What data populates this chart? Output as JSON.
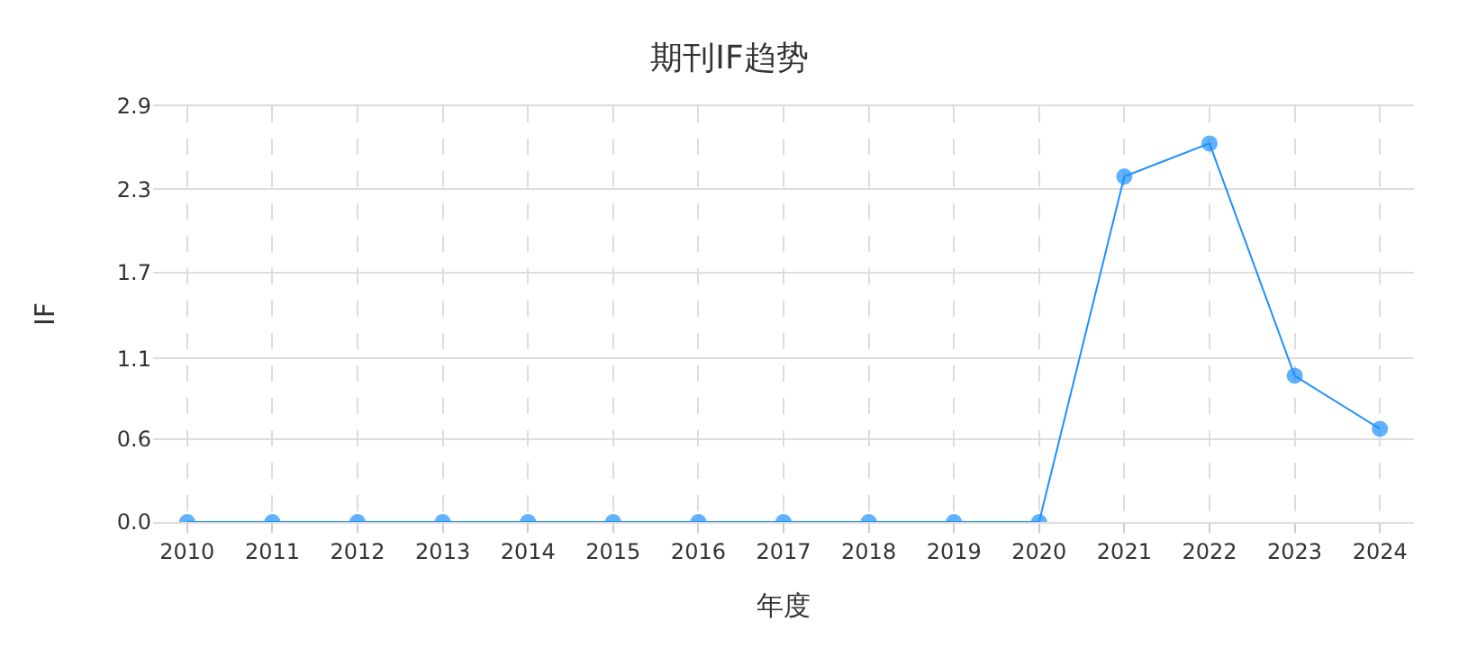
{
  "chart_data": {
    "type": "line",
    "title": "期刊IF趋势",
    "xlabel": "年度",
    "ylabel": "IF",
    "categories": [
      "2010",
      "2011",
      "2012",
      "2013",
      "2014",
      "2015",
      "2016",
      "2017",
      "2018",
      "2019",
      "2020",
      "2021",
      "2022",
      "2023",
      "2024"
    ],
    "series": [
      {
        "color": "#1e90ff",
        "values": [
          0,
          0,
          0,
          0,
          0,
          0,
          0,
          0,
          0,
          0,
          0,
          2.41,
          2.64,
          1.02,
          0.65
        ]
      }
    ],
    "ylim": [
      0,
      2.9
    ],
    "yticks": [
      {
        "value": 0,
        "label": "0.0"
      },
      {
        "value": 0.58,
        "label": "0.6"
      },
      {
        "value": 1.14,
        "label": "1.1"
      },
      {
        "value": 1.74,
        "label": "1.7"
      },
      {
        "value": 2.32,
        "label": "2.3"
      },
      {
        "value": 2.9,
        "label": "2.9"
      }
    ],
    "grid": true,
    "marker": "circle",
    "line_style": "solid"
  }
}
